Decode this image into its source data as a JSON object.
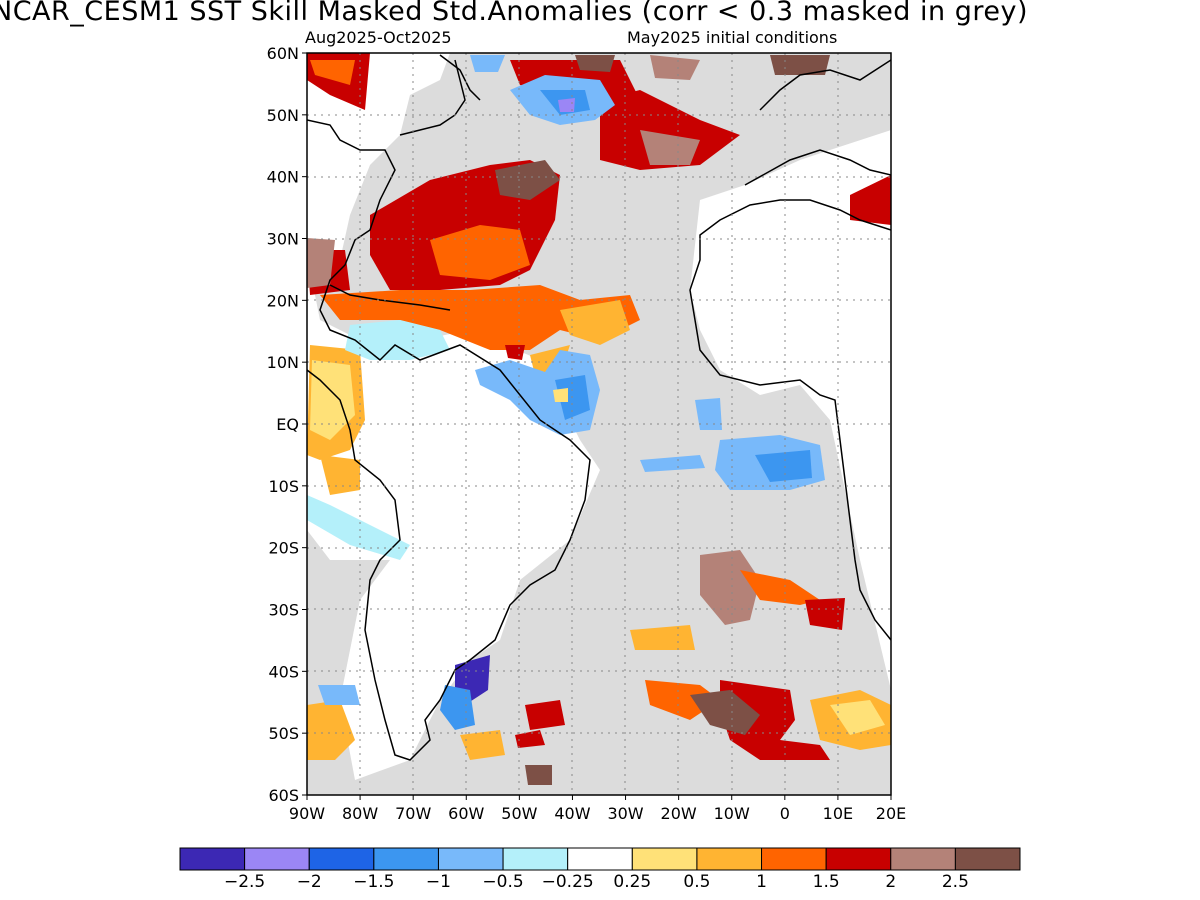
{
  "header": {
    "title": "NCAR_CESM1   SST Skill Masked Std.Anomalies (corr < 0.3 masked in grey)",
    "period": "Aug2025-Oct2025",
    "init": "May2025 initial conditions"
  },
  "map": {
    "region": "Atlantic Ocean",
    "extent": {
      "lon": [
        -90,
        20
      ],
      "lat": [
        -60,
        60
      ]
    },
    "lat_labels": [
      "60N",
      "50N",
      "40N",
      "30N",
      "20N",
      "10N",
      "EQ",
      "10S",
      "20S",
      "30S",
      "40S",
      "50S",
      "60S"
    ],
    "lon_labels": [
      "90W",
      "80W",
      "70W",
      "60W",
      "50W",
      "40W",
      "30W",
      "20W",
      "10W",
      "0",
      "10E",
      "20E"
    ],
    "mask_color": "#dcdcdc",
    "land_color": "#ffffff",
    "coast_color": "#000000"
  },
  "colorbar": {
    "colors": [
      "#3c28b4",
      "#9b86f5",
      "#1e64e6",
      "#3c96f0",
      "#78b9fa",
      "#b4f0fa",
      "#ffffff",
      "#ffe178",
      "#ffb432",
      "#ff6400",
      "#c80000",
      "#b48278",
      "#7d5046"
    ],
    "labels": [
      "-2.5",
      "-2",
      "-1.5",
      "-1",
      "-0.5",
      "-0.25",
      "0.25",
      "0.5",
      "1",
      "1.5",
      "2",
      "2.5"
    ]
  }
}
